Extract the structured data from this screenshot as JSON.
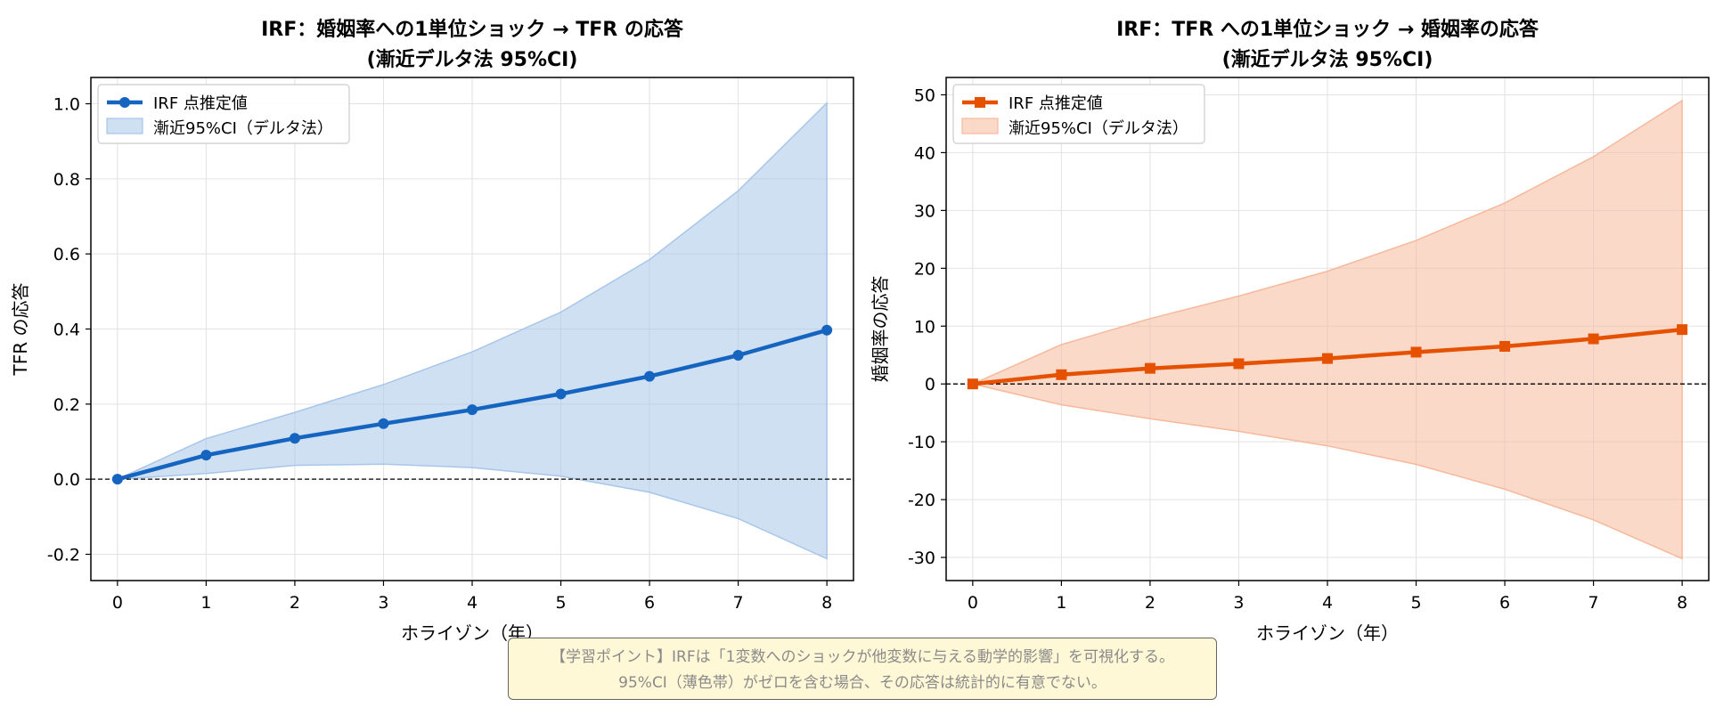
{
  "chart_data": [
    {
      "type": "line",
      "title_lines": [
        "IRF：婚姻率への1単位ショック → TFR の応答",
        "(漸近デルタ法 95%CI)"
      ],
      "xlabel": "ホライゾン（年）",
      "ylabel": "TFR の応答",
      "xlim": [
        -0.3,
        8.3
      ],
      "ylim": [
        -0.27,
        1.07
      ],
      "xticks": [
        0,
        1,
        2,
        3,
        4,
        5,
        6,
        7,
        8
      ],
      "xtick_labels": [
        "0",
        "1",
        "2",
        "3",
        "4",
        "5",
        "6",
        "7",
        "8"
      ],
      "yticks": [
        -0.2,
        0.0,
        0.2,
        0.4,
        0.6,
        0.8,
        1.0
      ],
      "ytick_labels": [
        "-0.2",
        "0.0",
        "0.2",
        "0.4",
        "0.6",
        "0.8",
        "1.0"
      ],
      "grid": true,
      "legend_position": "top-left",
      "zero_line": true,
      "x": [
        0,
        1,
        2,
        3,
        4,
        5,
        6,
        7,
        8
      ],
      "series": [
        {
          "name": "IRF 点推定値",
          "kind": "line",
          "marker": "circle",
          "color": "#1565c0",
          "values": [
            0.0,
            0.064,
            0.109,
            0.148,
            0.185,
            0.227,
            0.274,
            0.33,
            0.397
          ]
        },
        {
          "name": "漸近95%CI（デルタ法）",
          "kind": "band",
          "color": "#a8c6ea",
          "lower": [
            0.0,
            0.015,
            0.037,
            0.04,
            0.031,
            0.008,
            -0.035,
            -0.105,
            -0.212
          ],
          "upper": [
            0.0,
            0.108,
            0.178,
            0.252,
            0.339,
            0.445,
            0.585,
            0.768,
            1.002
          ]
        }
      ]
    },
    {
      "type": "line",
      "title_lines": [
        "IRF：TFR への1単位ショック → 婚姻率の応答",
        "(漸近デルタ法 95%CI)"
      ],
      "xlabel": "ホライゾン（年）",
      "ylabel": "婚姻率の応答",
      "xlim": [
        -0.3,
        8.3
      ],
      "ylim": [
        -34,
        53
      ],
      "xticks": [
        0,
        1,
        2,
        3,
        4,
        5,
        6,
        7,
        8
      ],
      "xtick_labels": [
        "0",
        "1",
        "2",
        "3",
        "4",
        "5",
        "6",
        "7",
        "8"
      ],
      "yticks": [
        -30,
        -20,
        -10,
        0,
        10,
        20,
        30,
        40,
        50
      ],
      "ytick_labels": [
        "-30",
        "-20",
        "-10",
        "0",
        "10",
        "20",
        "30",
        "40",
        "50"
      ],
      "grid": true,
      "legend_position": "top-left",
      "zero_line": true,
      "x": [
        0,
        1,
        2,
        3,
        4,
        5,
        6,
        7,
        8
      ],
      "series": [
        {
          "name": "IRF 点推定値",
          "kind": "line",
          "marker": "square",
          "color": "#e65100",
          "values": [
            0.0,
            1.6,
            2.7,
            3.5,
            4.4,
            5.5,
            6.5,
            7.8,
            9.4
          ]
        },
        {
          "name": "漸近95%CI（デルタ法）",
          "kind": "band",
          "color": "#f6b99c",
          "lower": [
            0.0,
            -3.6,
            -6.0,
            -8.2,
            -10.7,
            -13.9,
            -18.2,
            -23.5,
            -30.2
          ],
          "upper": [
            0.0,
            6.8,
            11.3,
            15.2,
            19.5,
            24.8,
            31.3,
            39.3,
            49.0
          ]
        }
      ]
    }
  ],
  "note": {
    "line1": "【学習ポイント】IRFは「1変数へのショックが他変数に与える動学的影響」を可視化する。",
    "line2": "95%CI（薄色帯）がゼロを含む場合、その応答は統計的に有意でない。"
  }
}
